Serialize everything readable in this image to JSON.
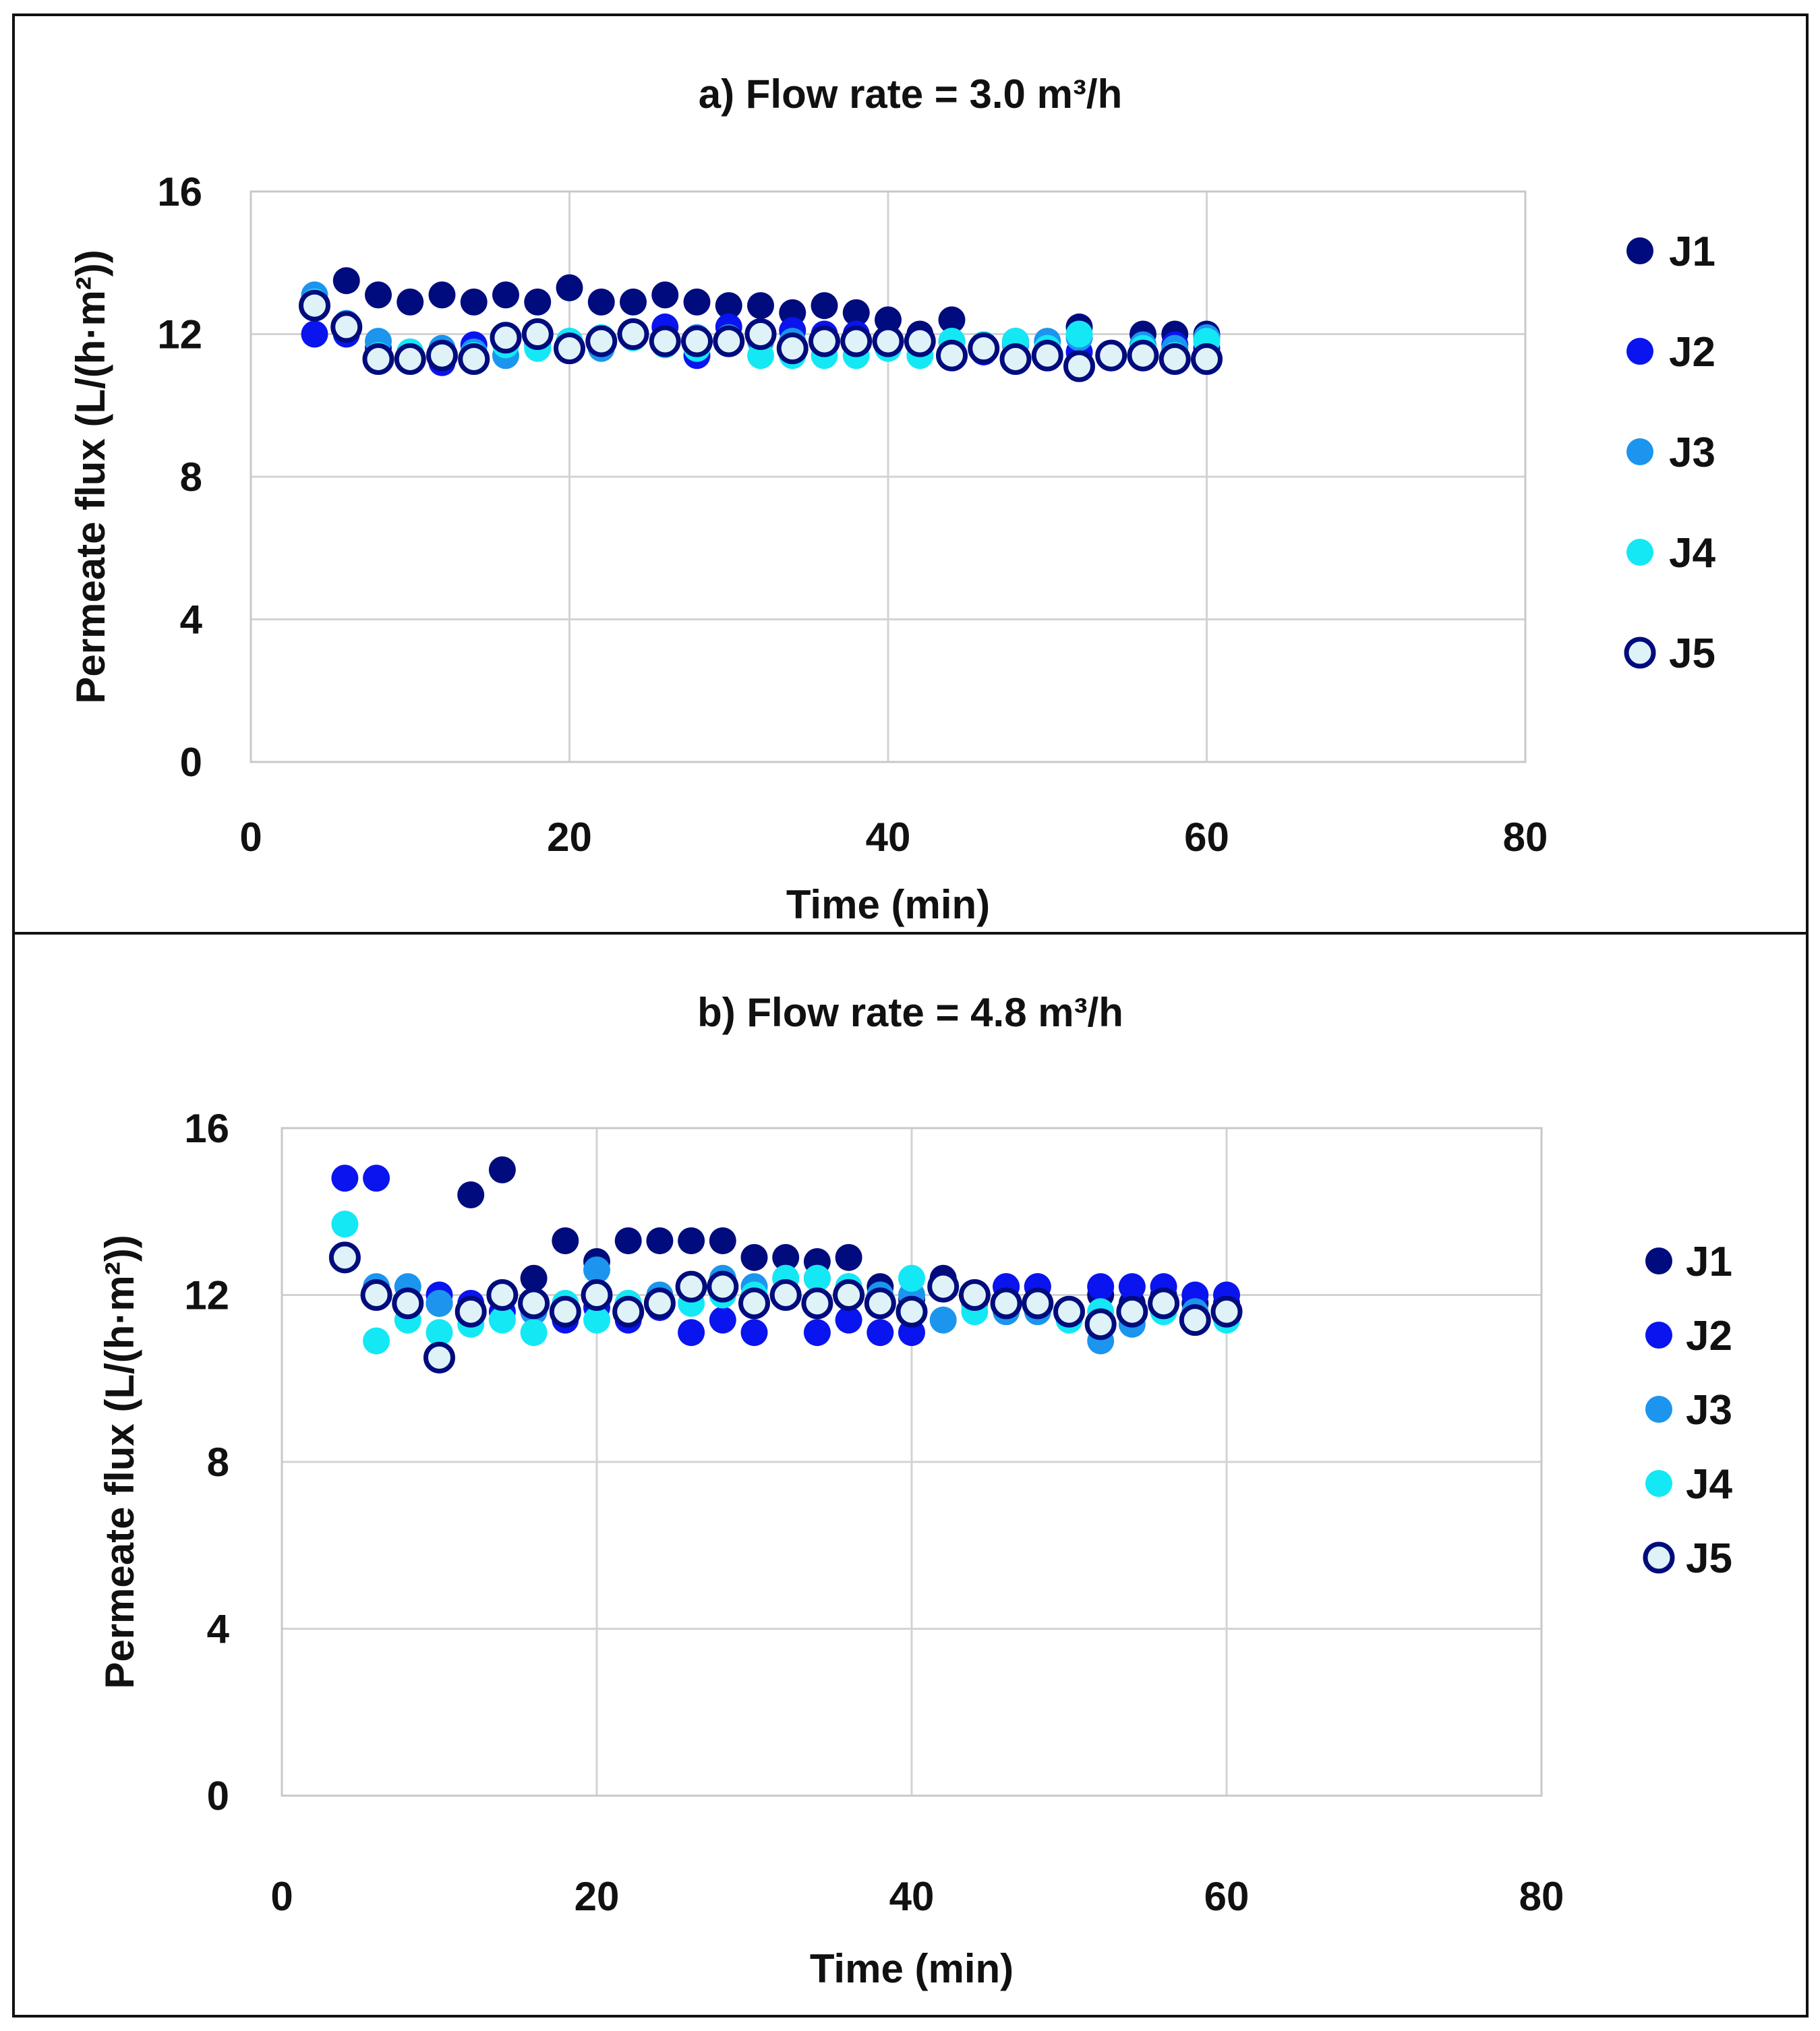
{
  "chart_data": [
    {
      "type": "scatter",
      "title": "a) Flow rate = 3.0 m³/h",
      "xlabel": "Time (min)",
      "ylabel": "Permeate flux (L/(h·m²))",
      "xlim": [
        0,
        80
      ],
      "ylim": [
        0,
        16
      ],
      "xticks": [
        0,
        20,
        40,
        60,
        80
      ],
      "yticks": [
        0,
        4,
        8,
        12,
        16
      ],
      "grid": true,
      "legend_position": "right",
      "series": [
        {
          "name": "J1",
          "color": "#000c7d",
          "fill": "#000c7d",
          "x": [
            4,
            6,
            8,
            10,
            12,
            14,
            16,
            18,
            20,
            22,
            24,
            26,
            28,
            30,
            32,
            34,
            36,
            38,
            40,
            42,
            44,
            46,
            48,
            50,
            52,
            54,
            56,
            58,
            60
          ],
          "y": [
            12.9,
            13.5,
            13.1,
            12.9,
            13.1,
            12.9,
            13.1,
            12.9,
            13.3,
            12.9,
            12.9,
            13.1,
            12.9,
            12.8,
            12.8,
            12.6,
            12.8,
            12.6,
            12.4,
            12.0,
            12.4,
            11.7,
            11.8,
            11.6,
            12.2,
            11.4,
            12.0,
            12.0,
            12.0
          ]
        },
        {
          "name": "J2",
          "color": "#0a14ee",
          "fill": "#0a14ee",
          "x": [
            4,
            6,
            8,
            10,
            12,
            14,
            16,
            18,
            20,
            22,
            24,
            26,
            28,
            30,
            32,
            34,
            36,
            38,
            40,
            42,
            44,
            46,
            48,
            50,
            52,
            54,
            56,
            58,
            60
          ],
          "y": [
            12.0,
            12.0,
            11.6,
            11.4,
            11.2,
            11.7,
            11.9,
            11.8,
            11.8,
            11.7,
            12.0,
            12.2,
            11.4,
            12.2,
            11.9,
            12.1,
            12.0,
            12.0,
            11.8,
            11.8,
            11.5,
            11.5,
            11.4,
            11.5,
            11.5,
            11.4,
            11.4,
            11.7,
            11.6
          ]
        },
        {
          "name": "J3",
          "color": "#1b95ee",
          "fill": "#1b95ee",
          "x": [
            4,
            6,
            8,
            10,
            12,
            14,
            16,
            18,
            20,
            22,
            24,
            26,
            28,
            30,
            32,
            34,
            36,
            38,
            40,
            42,
            44,
            46,
            48,
            50,
            52,
            54,
            56,
            58,
            60
          ],
          "y": [
            13.1,
            12.3,
            11.8,
            11.5,
            11.6,
            11.5,
            11.4,
            11.7,
            11.6,
            11.6,
            11.9,
            11.8,
            11.9,
            11.9,
            11.8,
            11.8,
            11.8,
            11.8,
            11.7,
            11.8,
            11.8,
            11.7,
            11.7,
            11.8,
            11.9,
            11.4,
            11.7,
            11.6,
            11.9
          ]
        },
        {
          "name": "J4",
          "color": "#14e8f5",
          "fill": "#14e8f5",
          "x": [
            4,
            6,
            8,
            10,
            12,
            14,
            16,
            18,
            20,
            22,
            24,
            26,
            28,
            30,
            32,
            34,
            36,
            38,
            40,
            42,
            44,
            46,
            48,
            50,
            52,
            54,
            56,
            58,
            60
          ],
          "y": [
            12.9,
            12.2,
            11.4,
            11.5,
            11.4,
            11.4,
            11.7,
            11.6,
            11.8,
            11.9,
            11.9,
            11.7,
            11.6,
            11.8,
            11.4,
            11.4,
            11.4,
            11.4,
            11.6,
            11.4,
            11.8,
            11.7,
            11.8,
            11.6,
            12.0,
            11.4,
            11.6,
            11.4,
            11.8
          ]
        },
        {
          "name": "J5",
          "color": "#000c7d",
          "fill": "#dff2f7",
          "hollow": true,
          "x": [
            4,
            6,
            8,
            10,
            12,
            14,
            16,
            18,
            20,
            22,
            24,
            26,
            28,
            30,
            32,
            34,
            36,
            38,
            40,
            42,
            44,
            46,
            48,
            50,
            52,
            54,
            56,
            58,
            60
          ],
          "y": [
            12.8,
            12.2,
            11.3,
            11.3,
            11.4,
            11.3,
            11.9,
            12.0,
            11.6,
            11.8,
            12.0,
            11.8,
            11.8,
            11.8,
            12.0,
            11.6,
            11.8,
            11.8,
            11.8,
            11.8,
            11.4,
            11.6,
            11.3,
            11.4,
            11.1,
            11.4,
            11.4,
            11.3,
            11.3
          ]
        }
      ]
    },
    {
      "type": "scatter",
      "title": "b) Flow rate = 4.8 m³/h",
      "xlabel": "Time (min)",
      "ylabel": "Permeate flux (L/(h·m²))",
      "xlim": [
        0,
        80
      ],
      "ylim": [
        0,
        16
      ],
      "xticks": [
        0,
        20,
        40,
        60,
        80
      ],
      "yticks": [
        0,
        4,
        8,
        12,
        16
      ],
      "grid": true,
      "legend_position": "right",
      "series": [
        {
          "name": "J1",
          "color": "#000c7d",
          "fill": "#000c7d",
          "x": [
            4,
            6,
            8,
            10,
            12,
            14,
            16,
            18,
            20,
            22,
            24,
            26,
            28,
            30,
            32,
            34,
            36,
            38,
            40,
            42,
            44,
            46,
            48,
            50,
            52,
            54,
            56,
            58,
            60
          ],
          "y": [
            12.9,
            12.0,
            11.9,
            11.8,
            14.4,
            15.0,
            12.4,
            13.3,
            12.8,
            13.3,
            13.3,
            13.3,
            13.3,
            12.9,
            12.9,
            12.8,
            12.9,
            12.2,
            11.9,
            12.4,
            12.0,
            12.2,
            12.2,
            11.6,
            12.0,
            11.8,
            12.0,
            11.8,
            11.8
          ]
        },
        {
          "name": "J2",
          "color": "#0a14ee",
          "fill": "#0a14ee",
          "x": [
            4,
            6,
            8,
            10,
            12,
            14,
            16,
            18,
            20,
            22,
            24,
            26,
            28,
            30,
            32,
            34,
            36,
            38,
            40,
            42,
            44,
            46,
            48,
            50,
            52,
            54,
            56,
            58,
            60
          ],
          "y": [
            14.8,
            14.8,
            11.8,
            12.0,
            11.8,
            11.6,
            11.6,
            11.4,
            11.7,
            11.4,
            11.7,
            11.1,
            11.4,
            11.1,
            12.0,
            11.1,
            11.4,
            11.1,
            11.1,
            12.2,
            12.0,
            12.2,
            12.2,
            11.6,
            12.2,
            12.2,
            12.2,
            12.0,
            12.0
          ]
        },
        {
          "name": "J3",
          "color": "#1b95ee",
          "fill": "#1b95ee",
          "x": [
            4,
            6,
            8,
            10,
            12,
            14,
            16,
            18,
            20,
            22,
            24,
            26,
            28,
            30,
            32,
            34,
            36,
            38,
            40,
            42,
            44,
            46,
            48,
            50,
            52,
            54,
            56,
            58,
            60
          ],
          "y": [
            12.9,
            12.2,
            12.2,
            11.8,
            11.6,
            12.0,
            11.6,
            11.7,
            12.6,
            11.8,
            12.0,
            12.2,
            12.4,
            12.2,
            12.4,
            12.4,
            12.2,
            12.0,
            12.0,
            11.4,
            11.8,
            11.6,
            11.6,
            11.6,
            10.9,
            11.3,
            11.8,
            11.6,
            11.6
          ]
        },
        {
          "name": "J4",
          "color": "#14e8f5",
          "fill": "#14e8f5",
          "x": [
            4,
            6,
            8,
            10,
            12,
            14,
            16,
            18,
            20,
            22,
            24,
            26,
            28,
            30,
            32,
            34,
            36,
            38,
            40,
            42,
            44,
            46,
            48,
            50,
            52,
            54,
            56,
            58,
            60
          ],
          "y": [
            13.7,
            10.9,
            11.4,
            11.1,
            11.3,
            11.4,
            11.1,
            11.8,
            11.4,
            11.8,
            11.8,
            11.8,
            12.0,
            12.0,
            12.4,
            12.4,
            12.2,
            11.8,
            12.4,
            12.2,
            11.6,
            11.8,
            11.8,
            11.4,
            11.6,
            11.6,
            11.6,
            11.4,
            11.4
          ]
        },
        {
          "name": "J5",
          "color": "#000c7d",
          "fill": "#dff2f7",
          "hollow": true,
          "x": [
            4,
            6,
            8,
            10,
            12,
            14,
            16,
            18,
            20,
            22,
            24,
            26,
            28,
            30,
            32,
            34,
            36,
            38,
            40,
            42,
            44,
            46,
            48,
            50,
            52,
            54,
            56,
            58,
            60
          ],
          "y": [
            12.9,
            12.0,
            11.8,
            10.5,
            11.6,
            12.0,
            11.8,
            11.6,
            12.0,
            11.6,
            11.8,
            12.2,
            12.2,
            11.8,
            12.0,
            11.8,
            12.0,
            11.8,
            11.6,
            12.2,
            12.0,
            11.8,
            11.8,
            11.6,
            11.3,
            11.6,
            11.8,
            11.4,
            11.6
          ]
        }
      ]
    }
  ]
}
